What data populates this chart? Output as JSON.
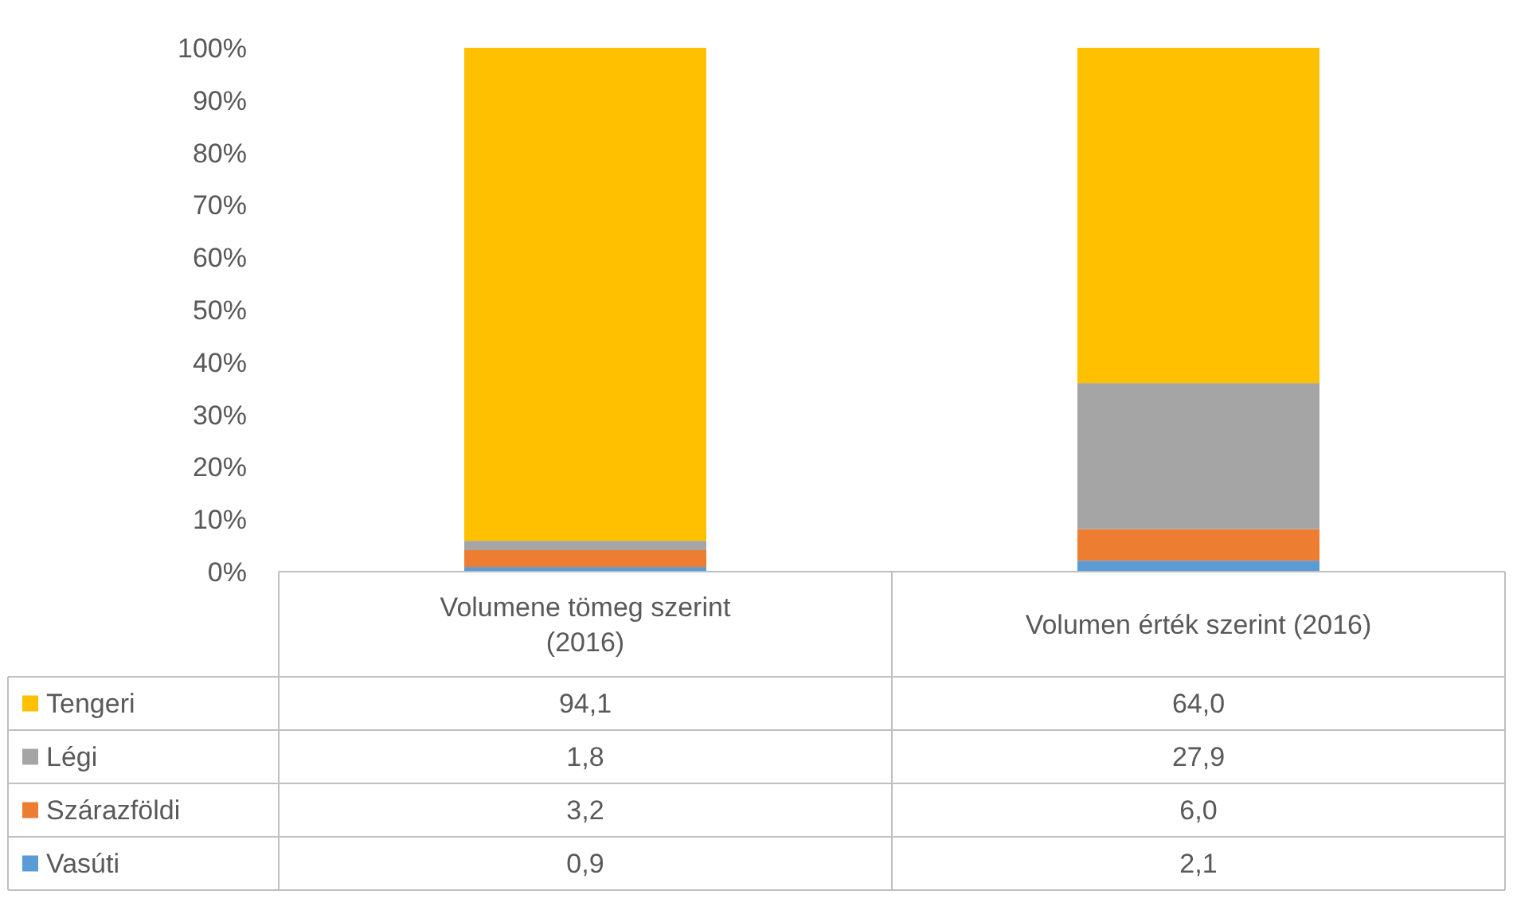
{
  "chart_data": {
    "type": "bar",
    "stacked": true,
    "categories": [
      "Volumene tömeg szerint (2016)",
      "Volumen érték szerint (2016)"
    ],
    "series": [
      {
        "name": "Vasúti",
        "color": "#5b9bd5",
        "values": [
          0.9,
          2.1
        ],
        "value_labels": [
          "0,9",
          "2,1"
        ]
      },
      {
        "name": "Szárazföldi",
        "color": "#ed7d31",
        "values": [
          3.2,
          6.0
        ],
        "value_labels": [
          "3,2",
          "6,0"
        ]
      },
      {
        "name": "Légi",
        "color": "#a5a5a5",
        "values": [
          1.8,
          27.9
        ],
        "value_labels": [
          "1,8",
          "27,9"
        ]
      },
      {
        "name": "Tengeri",
        "color": "#ffc000",
        "values": [
          94.1,
          64.0
        ],
        "value_labels": [
          "94,1",
          "64,0"
        ]
      }
    ],
    "ylim": [
      0,
      100
    ],
    "yticks": [
      {
        "value": 0,
        "label": "0%"
      },
      {
        "value": 10,
        "label": "10%"
      },
      {
        "value": 20,
        "label": "20%"
      },
      {
        "value": 30,
        "label": "30%"
      },
      {
        "value": 40,
        "label": "40%"
      },
      {
        "value": 50,
        "label": "50%"
      },
      {
        "value": 60,
        "label": "60%"
      },
      {
        "value": 70,
        "label": "70%"
      },
      {
        "value": 80,
        "label": "80%"
      },
      {
        "value": 90,
        "label": "90%"
      },
      {
        "value": 100,
        "label": "100%"
      }
    ],
    "legend": "bottom"
  }
}
